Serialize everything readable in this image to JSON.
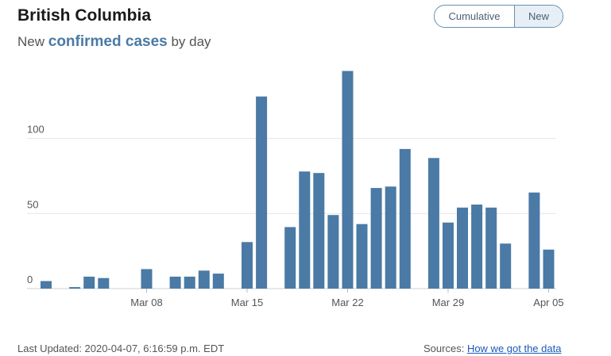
{
  "header": {
    "title": "British Columbia",
    "subtitle_prefix": "New",
    "subtitle_emphasis": "confirmed cases",
    "subtitle_suffix": "by day"
  },
  "toggle": {
    "cumulative_label": "Cumulative",
    "new_label": "New",
    "active": "New"
  },
  "footer": {
    "last_updated": "Last Updated: 2020-04-07, 6:16:59 p.m. EDT",
    "sources_label": "Sources:",
    "sources_link": "How we got the data"
  },
  "colors": {
    "bar": "#4a7aa5",
    "grid": "#e6e6e6",
    "axis_text": "#555555"
  },
  "chart_data": {
    "type": "bar",
    "title": "New confirmed cases by day",
    "xlabel": "",
    "ylabel": "",
    "ylim": [
      0,
      150
    ],
    "yticks": [
      0,
      50,
      100
    ],
    "x_tick_labels": [
      {
        "label": "Mar 08",
        "date": "2020-03-08"
      },
      {
        "label": "Mar 15",
        "date": "2020-03-15"
      },
      {
        "label": "Mar 22",
        "date": "2020-03-22"
      },
      {
        "label": "Mar 29",
        "date": "2020-03-29"
      },
      {
        "label": "Apr 05",
        "date": "2020-04-05"
      }
    ],
    "start_date": "2020-03-01",
    "end_date": "2020-04-06",
    "series": [
      {
        "name": "New cases",
        "values": [
          5,
          0,
          1,
          8,
          7,
          0,
          0,
          13,
          0,
          8,
          8,
          12,
          10,
          0,
          31,
          128,
          0,
          41,
          78,
          77,
          49,
          145,
          43,
          67,
          68,
          93,
          0,
          87,
          44,
          54,
          56,
          54,
          30,
          0,
          64,
          26
        ]
      }
    ]
  }
}
